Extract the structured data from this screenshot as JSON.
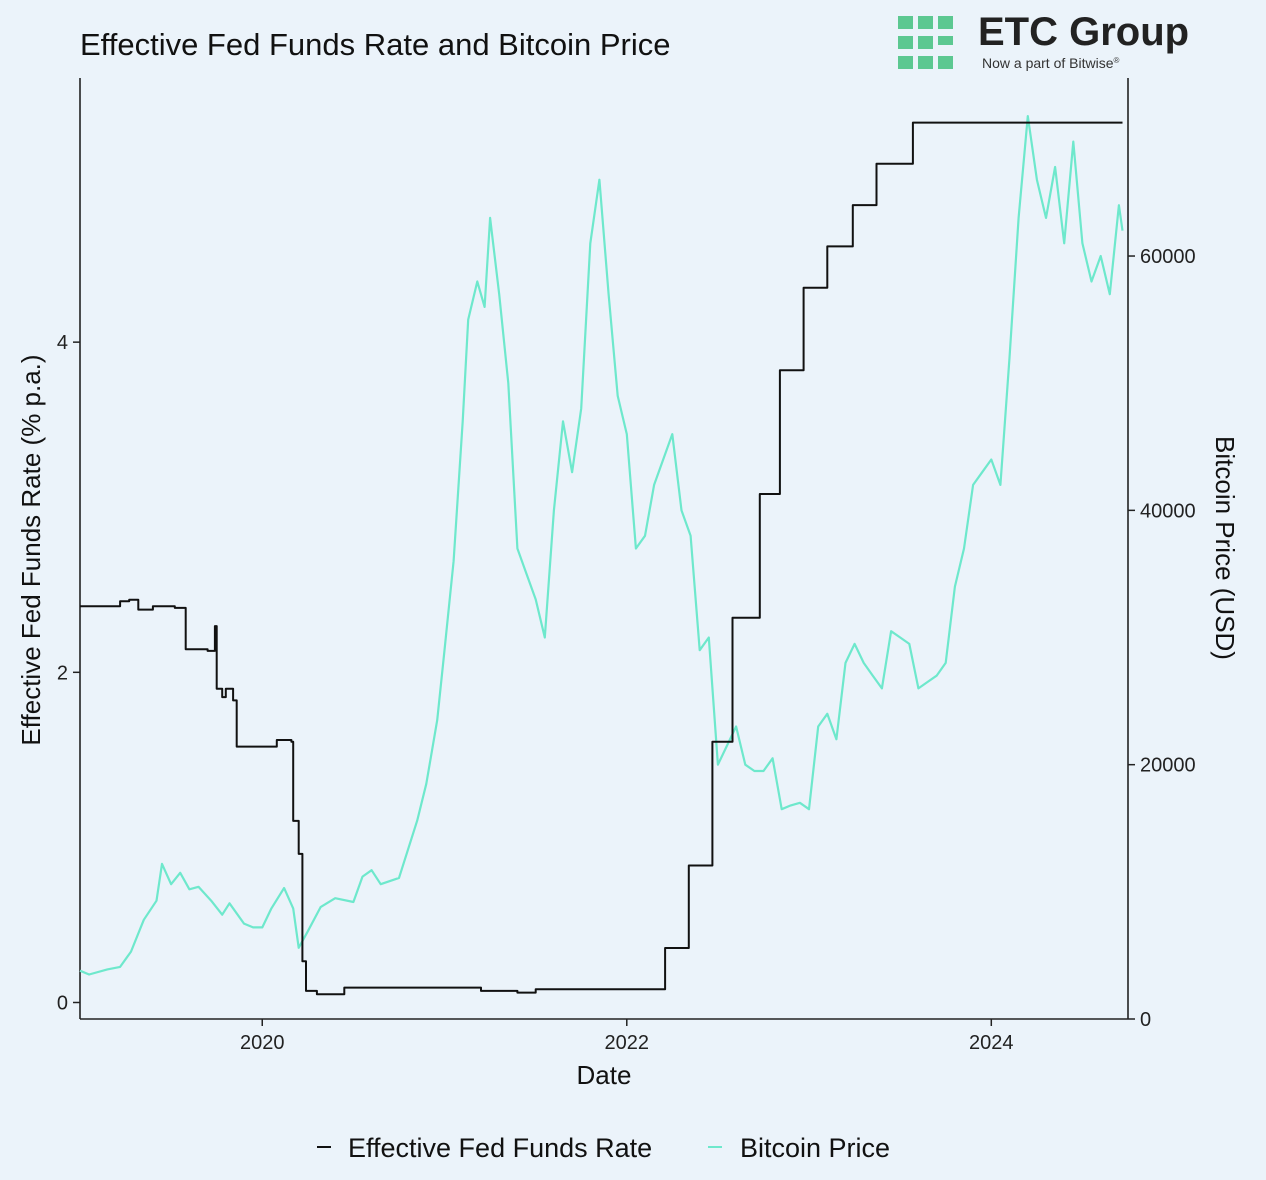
{
  "chart_data": {
    "type": "line",
    "title": "Effective Fed Funds Rate and Bitcoin Price",
    "xlabel": "Date",
    "ylabel_left": "Effective Fed Funds Rate (% p.a.)",
    "ylabel_right": "Bitcoin Price (USD)",
    "xlim": [
      2019.0,
      2024.75
    ],
    "ylim_left": [
      -0.1,
      5.6
    ],
    "ylim_right": [
      0,
      74000
    ],
    "x_ticks": [
      2020,
      2022,
      2024
    ],
    "y_left_ticks": [
      0,
      2,
      4
    ],
    "y_right_ticks": [
      0,
      20000,
      40000,
      60000
    ],
    "grid": false,
    "legend_position": "bottom",
    "series": [
      {
        "name": "Effective Fed Funds Rate",
        "axis": "left",
        "color": "#111111",
        "step": true,
        "points": [
          [
            2019.0,
            2.4
          ],
          [
            2019.2,
            2.4
          ],
          [
            2019.22,
            2.43
          ],
          [
            2019.27,
            2.44
          ],
          [
            2019.32,
            2.38
          ],
          [
            2019.4,
            2.4
          ],
          [
            2019.52,
            2.39
          ],
          [
            2019.58,
            2.14
          ],
          [
            2019.7,
            2.13
          ],
          [
            2019.74,
            2.28
          ],
          [
            2019.75,
            1.9
          ],
          [
            2019.78,
            1.85
          ],
          [
            2019.8,
            1.9
          ],
          [
            2019.84,
            1.83
          ],
          [
            2019.86,
            1.55
          ],
          [
            2020.05,
            1.55
          ],
          [
            2020.08,
            1.59
          ],
          [
            2020.16,
            1.58
          ],
          [
            2020.17,
            1.1
          ],
          [
            2020.2,
            0.9
          ],
          [
            2020.22,
            0.25
          ],
          [
            2020.24,
            0.07
          ],
          [
            2020.3,
            0.05
          ],
          [
            2020.45,
            0.09
          ],
          [
            2020.6,
            0.09
          ],
          [
            2020.9,
            0.09
          ],
          [
            2021.2,
            0.07
          ],
          [
            2021.4,
            0.06
          ],
          [
            2021.5,
            0.08
          ],
          [
            2021.7,
            0.08
          ],
          [
            2022.0,
            0.08
          ],
          [
            2022.2,
            0.08
          ],
          [
            2022.21,
            0.33
          ],
          [
            2022.33,
            0.33
          ],
          [
            2022.34,
            0.83
          ],
          [
            2022.46,
            0.83
          ],
          [
            2022.47,
            1.58
          ],
          [
            2022.57,
            1.58
          ],
          [
            2022.58,
            2.33
          ],
          [
            2022.72,
            2.33
          ],
          [
            2022.73,
            3.08
          ],
          [
            2022.83,
            3.08
          ],
          [
            2022.84,
            3.83
          ],
          [
            2022.96,
            3.83
          ],
          [
            2022.97,
            4.33
          ],
          [
            2023.09,
            4.33
          ],
          [
            2023.1,
            4.58
          ],
          [
            2023.23,
            4.58
          ],
          [
            2023.24,
            4.83
          ],
          [
            2023.36,
            4.83
          ],
          [
            2023.37,
            5.08
          ],
          [
            2023.56,
            5.08
          ],
          [
            2023.57,
            5.33
          ],
          [
            2024.72,
            5.33
          ]
        ]
      },
      {
        "name": "Bitcoin Price",
        "axis": "right",
        "color": "#6ee8cc",
        "step": false,
        "points": [
          [
            2019.0,
            3800
          ],
          [
            2019.05,
            3500
          ],
          [
            2019.15,
            3900
          ],
          [
            2019.22,
            4100
          ],
          [
            2019.28,
            5300
          ],
          [
            2019.35,
            7800
          ],
          [
            2019.42,
            9300
          ],
          [
            2019.45,
            12200
          ],
          [
            2019.5,
            10600
          ],
          [
            2019.55,
            11500
          ],
          [
            2019.6,
            10200
          ],
          [
            2019.65,
            10400
          ],
          [
            2019.72,
            9300
          ],
          [
            2019.78,
            8200
          ],
          [
            2019.82,
            9100
          ],
          [
            2019.9,
            7500
          ],
          [
            2019.95,
            7200
          ],
          [
            2020.0,
            7200
          ],
          [
            2020.05,
            8700
          ],
          [
            2020.12,
            10300
          ],
          [
            2020.17,
            8700
          ],
          [
            2020.2,
            5600
          ],
          [
            2020.25,
            6900
          ],
          [
            2020.32,
            8800
          ],
          [
            2020.4,
            9500
          ],
          [
            2020.5,
            9200
          ],
          [
            2020.55,
            11200
          ],
          [
            2020.6,
            11700
          ],
          [
            2020.65,
            10600
          ],
          [
            2020.75,
            11100
          ],
          [
            2020.85,
            15600
          ],
          [
            2020.9,
            18500
          ],
          [
            2020.96,
            23500
          ],
          [
            2021.0,
            29000
          ],
          [
            2021.05,
            36000
          ],
          [
            2021.1,
            47000
          ],
          [
            2021.13,
            55000
          ],
          [
            2021.18,
            58000
          ],
          [
            2021.22,
            56000
          ],
          [
            2021.25,
            63000
          ],
          [
            2021.3,
            57000
          ],
          [
            2021.35,
            50000
          ],
          [
            2021.4,
            37000
          ],
          [
            2021.45,
            35000
          ],
          [
            2021.5,
            33000
          ],
          [
            2021.55,
            30000
          ],
          [
            2021.6,
            40000
          ],
          [
            2021.65,
            47000
          ],
          [
            2021.7,
            43000
          ],
          [
            2021.75,
            48000
          ],
          [
            2021.8,
            61000
          ],
          [
            2021.85,
            66000
          ],
          [
            2021.9,
            57000
          ],
          [
            2021.95,
            49000
          ],
          [
            2022.0,
            46000
          ],
          [
            2022.05,
            37000
          ],
          [
            2022.1,
            38000
          ],
          [
            2022.15,
            42000
          ],
          [
            2022.2,
            44000
          ],
          [
            2022.25,
            46000
          ],
          [
            2022.3,
            40000
          ],
          [
            2022.35,
            38000
          ],
          [
            2022.4,
            29000
          ],
          [
            2022.45,
            30000
          ],
          [
            2022.5,
            20000
          ],
          [
            2022.55,
            21500
          ],
          [
            2022.6,
            23000
          ],
          [
            2022.65,
            20000
          ],
          [
            2022.7,
            19500
          ],
          [
            2022.75,
            19500
          ],
          [
            2022.8,
            20500
          ],
          [
            2022.85,
            16500
          ],
          [
            2022.9,
            16800
          ],
          [
            2022.95,
            17000
          ],
          [
            2023.0,
            16500
          ],
          [
            2023.05,
            23000
          ],
          [
            2023.1,
            24000
          ],
          [
            2023.15,
            22000
          ],
          [
            2023.2,
            28000
          ],
          [
            2023.25,
            29500
          ],
          [
            2023.3,
            28000
          ],
          [
            2023.35,
            27000
          ],
          [
            2023.4,
            26000
          ],
          [
            2023.45,
            30500
          ],
          [
            2023.5,
            30000
          ],
          [
            2023.55,
            29500
          ],
          [
            2023.6,
            26000
          ],
          [
            2023.65,
            26500
          ],
          [
            2023.7,
            27000
          ],
          [
            2023.75,
            28000
          ],
          [
            2023.8,
            34000
          ],
          [
            2023.85,
            37000
          ],
          [
            2023.9,
            42000
          ],
          [
            2023.95,
            43000
          ],
          [
            2024.0,
            44000
          ],
          [
            2024.05,
            42000
          ],
          [
            2024.1,
            52000
          ],
          [
            2024.15,
            63000
          ],
          [
            2024.2,
            71000
          ],
          [
            2024.25,
            66000
          ],
          [
            2024.3,
            63000
          ],
          [
            2024.35,
            67000
          ],
          [
            2024.4,
            61000
          ],
          [
            2024.45,
            69000
          ],
          [
            2024.5,
            61000
          ],
          [
            2024.55,
            58000
          ],
          [
            2024.6,
            60000
          ],
          [
            2024.65,
            57000
          ],
          [
            2024.7,
            64000
          ],
          [
            2024.72,
            62000
          ]
        ]
      }
    ]
  },
  "logo": {
    "name": "ETC Group",
    "tagline": "Now a part of Bitwise",
    "trademark": "®",
    "mark_color": "#5cc891"
  },
  "colors": {
    "background": "#ebf3fa",
    "axis": "#222222"
  }
}
